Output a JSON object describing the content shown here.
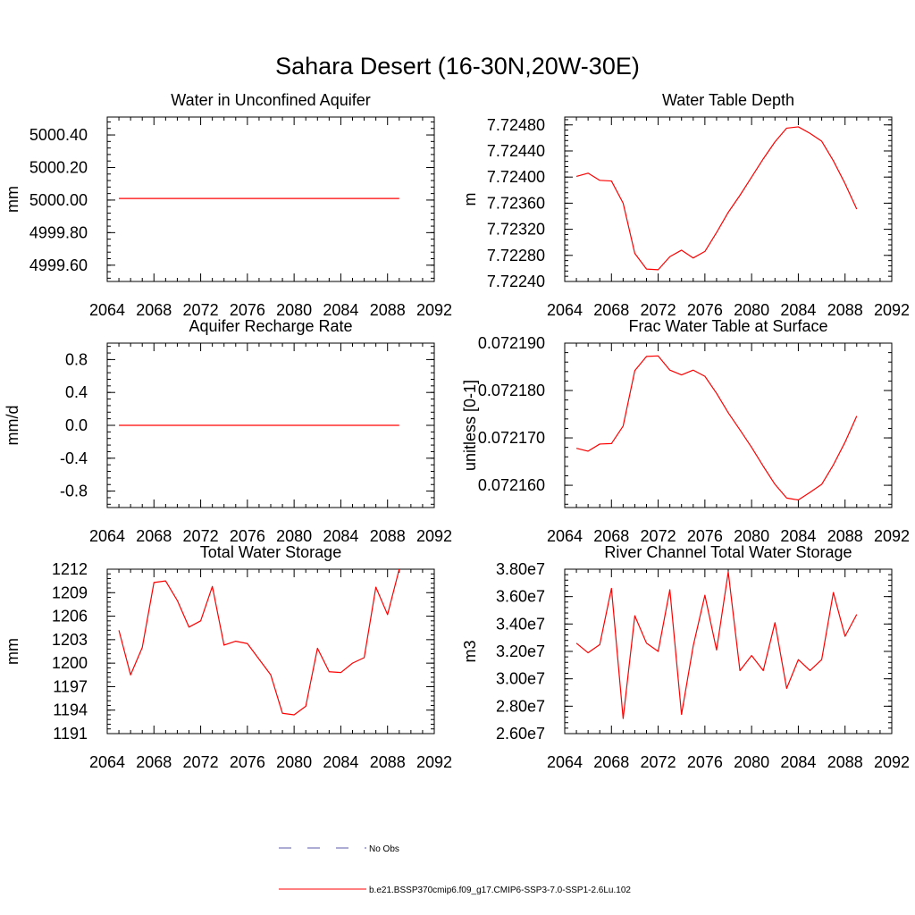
{
  "figure": {
    "title": "Sahara Desert (16-30N,20W-30E)"
  },
  "legend": {
    "placement": "bottom-center",
    "entries": [
      {
        "label": "No Obs",
        "color": "#5a5aa8",
        "style": "dashed"
      },
      {
        "label": "b.e21.BSSP370cmip6.f09_g17.CMIP6-SSP3-7.0-SSP1-2.6Lu.102",
        "color": "#ff0000",
        "style": "solid"
      }
    ]
  },
  "chart_data": [
    {
      "type": "line",
      "title": "Water in Unconfined Aquifer",
      "ylabel": "mm",
      "xlim": [
        2064,
        2092
      ],
      "xticks": [
        2064,
        2068,
        2072,
        2076,
        2080,
        2084,
        2088,
        2092
      ],
      "ylim": [
        4999.5,
        5000.51
      ],
      "yticks": [
        4999.6,
        4999.8,
        5000.0,
        5000.2,
        5000.4
      ],
      "ytick_labels": [
        "4999.60",
        "4999.80",
        "5000.00",
        "5000.20",
        "5000.40"
      ],
      "yminor": 0.04,
      "color": "#ff0000",
      "x": [
        2065,
        2066,
        2067,
        2068,
        2069,
        2070,
        2071,
        2072,
        2073,
        2074,
        2075,
        2076,
        2077,
        2078,
        2079,
        2080,
        2081,
        2082,
        2083,
        2084,
        2085,
        2086,
        2087,
        2088,
        2089
      ],
      "values": [
        5000.01,
        5000.01,
        5000.01,
        5000.01,
        5000.01,
        5000.01,
        5000.01,
        5000.01,
        5000.01,
        5000.01,
        5000.01,
        5000.01,
        5000.01,
        5000.01,
        5000.01,
        5000.01,
        5000.01,
        5000.01,
        5000.01,
        5000.01,
        5000.01,
        5000.01,
        5000.01,
        5000.01,
        5000.01
      ]
    },
    {
      "type": "line",
      "title": "Water Table Depth",
      "ylabel": "m",
      "xlim": [
        2064,
        2092
      ],
      "xticks": [
        2064,
        2068,
        2072,
        2076,
        2080,
        2084,
        2088,
        2092
      ],
      "ylim": [
        7.7224,
        7.72492
      ],
      "yticks": [
        7.7224,
        7.7228,
        7.7232,
        7.7236,
        7.724,
        7.7244,
        7.7248
      ],
      "ytick_labels": [
        "7.72240",
        "7.72280",
        "7.72320",
        "7.72360",
        "7.72400",
        "7.72440",
        "7.72480"
      ],
      "yminor": 8e-05,
      "color": "#ff0000",
      "x": [
        2065,
        2066,
        2067,
        2068,
        2069,
        2070,
        2071,
        2072,
        2073,
        2074,
        2075,
        2076,
        2077,
        2078,
        2079,
        2080,
        2081,
        2082,
        2083,
        2084,
        2085,
        2086,
        2087,
        2088,
        2089
      ],
      "values": [
        7.72401,
        7.72406,
        7.72395,
        7.72394,
        7.7236,
        7.72283,
        7.72259,
        7.72258,
        7.72278,
        7.72288,
        7.72276,
        7.72286,
        7.72315,
        7.72346,
        7.72372,
        7.724,
        7.72428,
        7.72454,
        7.72475,
        7.72477,
        7.72467,
        7.72455,
        7.72425,
        7.7239,
        7.72351
      ]
    },
    {
      "type": "line",
      "title": "Aquifer Recharge Rate",
      "ylabel": "mm/d",
      "xlim": [
        2064,
        2092
      ],
      "xticks": [
        2064,
        2068,
        2072,
        2076,
        2080,
        2084,
        2088,
        2092
      ],
      "ylim": [
        -1.0,
        1.0
      ],
      "yticks": [
        -0.8,
        -0.4,
        0.0,
        0.4,
        0.8
      ],
      "ytick_labels": [
        "-0.8",
        "-0.4",
        "0.0",
        "0.4",
        "0.8"
      ],
      "yminor": 0.08,
      "color": "#ff0000",
      "x": [
        2065,
        2066,
        2067,
        2068,
        2069,
        2070,
        2071,
        2072,
        2073,
        2074,
        2075,
        2076,
        2077,
        2078,
        2079,
        2080,
        2081,
        2082,
        2083,
        2084,
        2085,
        2086,
        2087,
        2088,
        2089
      ],
      "values": [
        0,
        0,
        0,
        0,
        0,
        0,
        0,
        0,
        0,
        0,
        0,
        0,
        0,
        0,
        0,
        0,
        0,
        0,
        0,
        0,
        0,
        0,
        0,
        0,
        0
      ]
    },
    {
      "type": "line",
      "title": "Frac Water Table at Surface",
      "ylabel": "unitless [0-1]",
      "xlim": [
        2064,
        2092
      ],
      "xticks": [
        2064,
        2068,
        2072,
        2076,
        2080,
        2084,
        2088,
        2092
      ],
      "ylim": [
        0.0721553,
        0.07219
      ],
      "yticks": [
        0.07216,
        0.07217,
        0.07218,
        0.07219
      ],
      "ytick_labels": [
        "0.072160",
        "0.072170",
        "0.072180",
        "0.072190"
      ],
      "yminor": 2e-06,
      "color": "#ff0000",
      "x": [
        2065,
        2066,
        2067,
        2068,
        2069,
        2070,
        2071,
        2072,
        2073,
        2074,
        2075,
        2076,
        2077,
        2078,
        2079,
        2080,
        2081,
        2082,
        2083,
        2084,
        2085,
        2086,
        2087,
        2088,
        2089
      ],
      "values": [
        0.0721678,
        0.0721672,
        0.0721687,
        0.0721688,
        0.0721725,
        0.0721842,
        0.0721872,
        0.0721873,
        0.0721843,
        0.0721833,
        0.0721843,
        0.072183,
        0.0721794,
        0.0721753,
        0.0721717,
        0.072168,
        0.072164,
        0.0721602,
        0.0721573,
        0.0721569,
        0.0721585,
        0.0721602,
        0.0721643,
        0.0721691,
        0.0721746
      ]
    },
    {
      "type": "line",
      "title": "Total Water Storage",
      "ylabel": "mm",
      "xlim": [
        2064,
        2092
      ],
      "xticks": [
        2064,
        2068,
        2072,
        2076,
        2080,
        2084,
        2088,
        2092
      ],
      "ylim": [
        1191,
        1212
      ],
      "yticks": [
        1191,
        1194,
        1197,
        1200,
        1203,
        1206,
        1209,
        1212
      ],
      "ytick_labels": [
        "1191",
        "1194",
        "1197",
        "1200",
        "1203",
        "1206",
        "1209",
        "1212"
      ],
      "yminor": 0.6,
      "color": "#ff0000",
      "x": [
        2065,
        2066,
        2067,
        2068,
        2069,
        2070,
        2071,
        2072,
        2073,
        2074,
        2075,
        2076,
        2077,
        2078,
        2079,
        2080,
        2081,
        2082,
        2083,
        2084,
        2085,
        2086,
        2087,
        2088,
        2089
      ],
      "values": [
        1204.2,
        1198.5,
        1202.0,
        1210.3,
        1210.5,
        1208.0,
        1204.6,
        1205.4,
        1209.8,
        1202.3,
        1202.8,
        1202.5,
        1200.5,
        1198.5,
        1193.6,
        1193.4,
        1194.5,
        1201.9,
        1198.9,
        1198.8,
        1200.0,
        1200.7,
        1209.7,
        1206.2,
        1212.0
      ]
    },
    {
      "type": "line",
      "title": "River Channel Total Water Storage",
      "ylabel": "m3",
      "xlim": [
        2064,
        2092
      ],
      "xticks": [
        2064,
        2068,
        2072,
        2076,
        2080,
        2084,
        2088,
        2092
      ],
      "ylim": [
        26000000,
        38000000
      ],
      "yticks": [
        26000000,
        28000000,
        30000000,
        32000000,
        34000000,
        36000000,
        38000000
      ],
      "ytick_labels": [
        "2.60e7",
        "2.80e7",
        "3.00e7",
        "3.20e7",
        "3.40e7",
        "3.60e7",
        "3.80e7"
      ],
      "yminor": 400000,
      "color": "#ff0000",
      "x": [
        2065,
        2066,
        2067,
        2068,
        2069,
        2070,
        2071,
        2072,
        2073,
        2074,
        2075,
        2076,
        2077,
        2078,
        2079,
        2080,
        2081,
        2082,
        2083,
        2084,
        2085,
        2086,
        2087,
        2088,
        2089
      ],
      "values": [
        32600000,
        31900000,
        32500000,
        36600000,
        27100000,
        34600000,
        32600000,
        32000000,
        36500000,
        27400000,
        32400000,
        36100000,
        32100000,
        37800000,
        30600000,
        31700000,
        30600000,
        34100000,
        29300000,
        31400000,
        30600000,
        31400000,
        36300000,
        33100000,
        34700000
      ]
    }
  ]
}
